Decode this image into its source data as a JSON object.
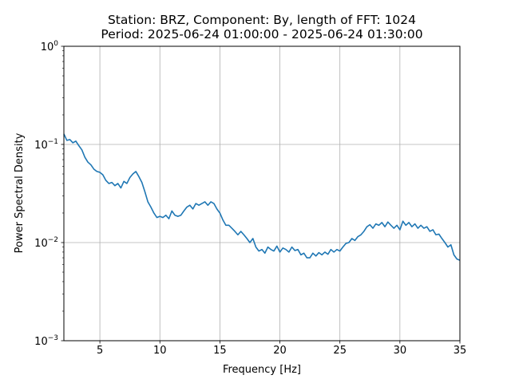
{
  "chart_data": {
    "type": "line",
    "title": "Station: BRZ, Component: By, length of FFT: 1024",
    "subtitle": "Period: 2025-06-24 01:00:00 - 2025-06-24 01:30:00",
    "xlabel": "Frequency [Hz]",
    "ylabel": "Power Spectral Density",
    "xlim": [
      2,
      35
    ],
    "ylim": [
      0.001,
      1
    ],
    "yscale": "log",
    "grid": true,
    "x_ticks": [
      5,
      10,
      15,
      20,
      25,
      30,
      35
    ],
    "x_tick_labels": [
      "5",
      "10",
      "15",
      "20",
      "25",
      "30",
      "35"
    ],
    "y_ticks": [
      0.001,
      0.01,
      0.1,
      1
    ],
    "y_tick_labels": [
      {
        "base": "10",
        "exp": "−3"
      },
      {
        "base": "10",
        "exp": "−2"
      },
      {
        "base": "10",
        "exp": "−1"
      },
      {
        "base": "10",
        "exp": "0"
      }
    ],
    "series": [
      {
        "color": "#1f77b4",
        "points": [
          [
            2.0,
            0.128
          ],
          [
            2.25,
            0.11
          ],
          [
            2.5,
            0.112
          ],
          [
            2.75,
            0.104
          ],
          [
            3.0,
            0.108
          ],
          [
            3.25,
            0.097
          ],
          [
            3.5,
            0.088
          ],
          [
            3.75,
            0.074
          ],
          [
            4.0,
            0.066
          ],
          [
            4.25,
            0.062
          ],
          [
            4.5,
            0.056
          ],
          [
            4.75,
            0.053
          ],
          [
            5.0,
            0.052
          ],
          [
            5.25,
            0.049
          ],
          [
            5.5,
            0.043
          ],
          [
            5.75,
            0.04
          ],
          [
            6.0,
            0.041
          ],
          [
            6.25,
            0.038
          ],
          [
            6.5,
            0.04
          ],
          [
            6.75,
            0.036
          ],
          [
            7.0,
            0.042
          ],
          [
            7.25,
            0.04
          ],
          [
            7.5,
            0.046
          ],
          [
            7.75,
            0.05
          ],
          [
            8.0,
            0.053
          ],
          [
            8.25,
            0.047
          ],
          [
            8.5,
            0.041
          ],
          [
            8.75,
            0.033
          ],
          [
            9.0,
            0.026
          ],
          [
            9.25,
            0.023
          ],
          [
            9.5,
            0.02
          ],
          [
            9.75,
            0.018
          ],
          [
            10.0,
            0.0185
          ],
          [
            10.25,
            0.018
          ],
          [
            10.5,
            0.019
          ],
          [
            10.75,
            0.0175
          ],
          [
            11.0,
            0.021
          ],
          [
            11.25,
            0.019
          ],
          [
            11.5,
            0.0185
          ],
          [
            11.75,
            0.019
          ],
          [
            12.0,
            0.021
          ],
          [
            12.25,
            0.023
          ],
          [
            12.5,
            0.024
          ],
          [
            12.75,
            0.022
          ],
          [
            13.0,
            0.025
          ],
          [
            13.25,
            0.024
          ],
          [
            13.5,
            0.025
          ],
          [
            13.75,
            0.026
          ],
          [
            14.0,
            0.024
          ],
          [
            14.25,
            0.026
          ],
          [
            14.5,
            0.025
          ],
          [
            14.75,
            0.022
          ],
          [
            15.0,
            0.02
          ],
          [
            15.25,
            0.017
          ],
          [
            15.5,
            0.015
          ],
          [
            15.75,
            0.015
          ],
          [
            16.0,
            0.014
          ],
          [
            16.25,
            0.013
          ],
          [
            16.5,
            0.012
          ],
          [
            16.75,
            0.013
          ],
          [
            17.0,
            0.012
          ],
          [
            17.25,
            0.011
          ],
          [
            17.5,
            0.01
          ],
          [
            17.75,
            0.011
          ],
          [
            18.0,
            0.009
          ],
          [
            18.25,
            0.0082
          ],
          [
            18.5,
            0.0085
          ],
          [
            18.75,
            0.0078
          ],
          [
            19.0,
            0.009
          ],
          [
            19.25,
            0.0085
          ],
          [
            19.5,
            0.0082
          ],
          [
            19.75,
            0.0092
          ],
          [
            20.0,
            0.008
          ],
          [
            20.25,
            0.0088
          ],
          [
            20.5,
            0.0085
          ],
          [
            20.75,
            0.008
          ],
          [
            21.0,
            0.009
          ],
          [
            21.25,
            0.0083
          ],
          [
            21.5,
            0.0085
          ],
          [
            21.75,
            0.0075
          ],
          [
            22.0,
            0.0078
          ],
          [
            22.25,
            0.007
          ],
          [
            22.5,
            0.007
          ],
          [
            22.75,
            0.0078
          ],
          [
            23.0,
            0.0073
          ],
          [
            23.25,
            0.0079
          ],
          [
            23.5,
            0.0075
          ],
          [
            23.75,
            0.008
          ],
          [
            24.0,
            0.0076
          ],
          [
            24.25,
            0.0085
          ],
          [
            24.5,
            0.008
          ],
          [
            24.75,
            0.0085
          ],
          [
            25.0,
            0.0082
          ],
          [
            25.25,
            0.009
          ],
          [
            25.5,
            0.0098
          ],
          [
            25.75,
            0.01
          ],
          [
            26.0,
            0.011
          ],
          [
            26.25,
            0.0105
          ],
          [
            26.5,
            0.0115
          ],
          [
            26.75,
            0.012
          ],
          [
            27.0,
            0.013
          ],
          [
            27.25,
            0.0145
          ],
          [
            27.5,
            0.0152
          ],
          [
            27.75,
            0.014
          ],
          [
            28.0,
            0.0155
          ],
          [
            28.25,
            0.015
          ],
          [
            28.5,
            0.016
          ],
          [
            28.75,
            0.0145
          ],
          [
            29.0,
            0.0162
          ],
          [
            29.25,
            0.015
          ],
          [
            29.5,
            0.014
          ],
          [
            29.75,
            0.015
          ],
          [
            30.0,
            0.0135
          ],
          [
            30.25,
            0.0165
          ],
          [
            30.5,
            0.015
          ],
          [
            30.75,
            0.016
          ],
          [
            31.0,
            0.0145
          ],
          [
            31.25,
            0.0155
          ],
          [
            31.5,
            0.014
          ],
          [
            31.75,
            0.015
          ],
          [
            32.0,
            0.014
          ],
          [
            32.25,
            0.0145
          ],
          [
            32.5,
            0.013
          ],
          [
            32.75,
            0.0135
          ],
          [
            33.0,
            0.012
          ],
          [
            33.25,
            0.0122
          ],
          [
            33.5,
            0.011
          ],
          [
            33.75,
            0.01
          ],
          [
            34.0,
            0.009
          ],
          [
            34.25,
            0.0095
          ],
          [
            34.5,
            0.0075
          ],
          [
            34.75,
            0.0068
          ],
          [
            35.0,
            0.0066
          ]
        ]
      }
    ]
  }
}
